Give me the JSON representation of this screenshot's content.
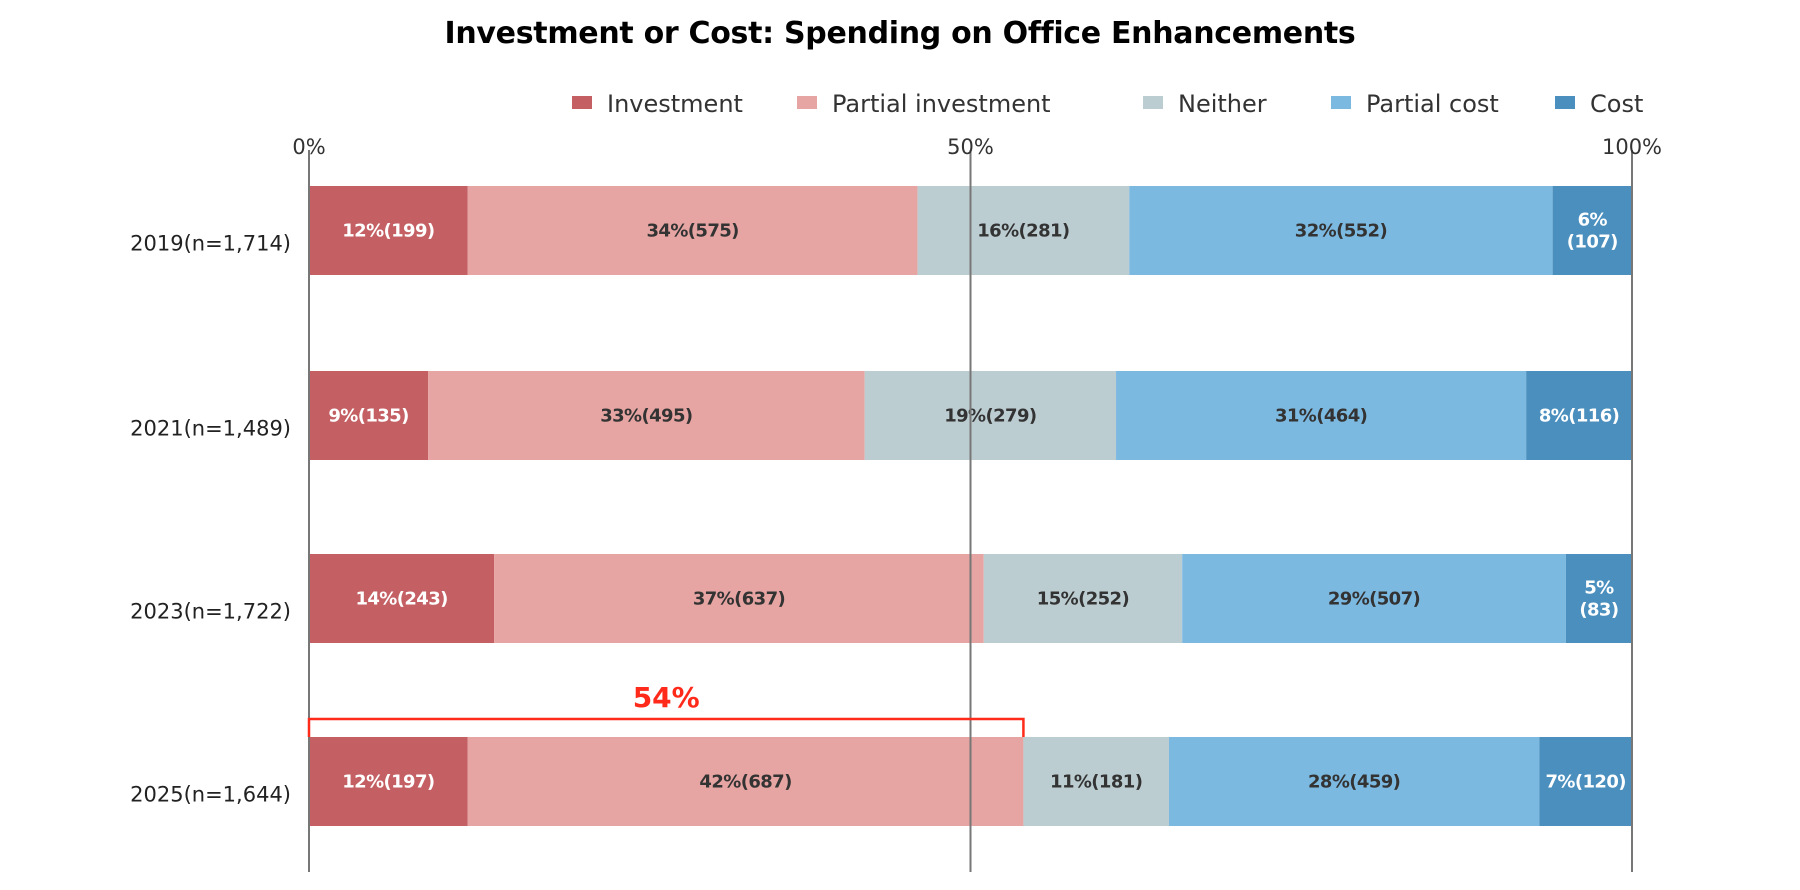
{
  "chart_data": {
    "type": "bar",
    "orientation": "horizontal",
    "stacked": true,
    "normalized": true,
    "title": "Investment or Cost: Spending on Office Enhancements",
    "xlabel": "",
    "ylabel": "",
    "xlim": [
      0,
      100
    ],
    "x_ticks": [
      "0%",
      "50%",
      "100%"
    ],
    "x_tick_values": [
      0,
      50,
      100
    ],
    "grid": "vertical lines at 0%, 50%, 100%",
    "legend_position": "top",
    "categories": [
      "2019(n=1,714)",
      "2021(n=1,489)",
      "2023(n=1,722)",
      "2025(n=1,644)"
    ],
    "series": [
      {
        "name": "Investment",
        "color": "#c46064",
        "label_color": "#ffffff",
        "values": [
          12,
          9,
          14,
          12
        ],
        "counts": [
          199,
          135,
          243,
          197
        ],
        "labels": [
          "12%(199)",
          "9%(135)",
          "14%(243)",
          "12%(197)"
        ]
      },
      {
        "name": "Partial investment",
        "color": "#e6a5a2",
        "label_color": "#333333",
        "values": [
          34,
          33,
          37,
          42
        ],
        "counts": [
          575,
          495,
          637,
          687
        ],
        "labels": [
          "34%(575)",
          "33%(495)",
          "37%(637)",
          "42%(687)"
        ]
      },
      {
        "name": "Neither",
        "color": "#bccdd2",
        "label_color": "#333333",
        "values": [
          16,
          19,
          15,
          11
        ],
        "counts": [
          281,
          279,
          252,
          181
        ],
        "labels": [
          "16%(281)",
          "19%(279)",
          "15%(252)",
          "11%(181)"
        ]
      },
      {
        "name": "Partial cost",
        "color": "#7cb9e1",
        "label_color": "#333333",
        "values": [
          32,
          31,
          29,
          28
        ],
        "counts": [
          552,
          464,
          507,
          459
        ],
        "labels": [
          "32%(552)",
          "31%(464)",
          "29%(507)",
          "28%(459)"
        ]
      },
      {
        "name": "Cost",
        "color": "#4a8fbe",
        "label_color": "#ffffff",
        "values": [
          6,
          8,
          5,
          7
        ],
        "counts": [
          107,
          116,
          83,
          120
        ],
        "labels": [
          "6%\n(107)",
          "8%(116)",
          "5%\n(83)",
          "7%(120)"
        ]
      }
    ],
    "annotations": [
      {
        "text": "54%",
        "category": "2025(n=1,644)",
        "spans_series": [
          "Investment",
          "Partial investment"
        ],
        "range": [
          0,
          54
        ],
        "color": "#ff2a1a",
        "style": "bracket above bar"
      }
    ]
  }
}
